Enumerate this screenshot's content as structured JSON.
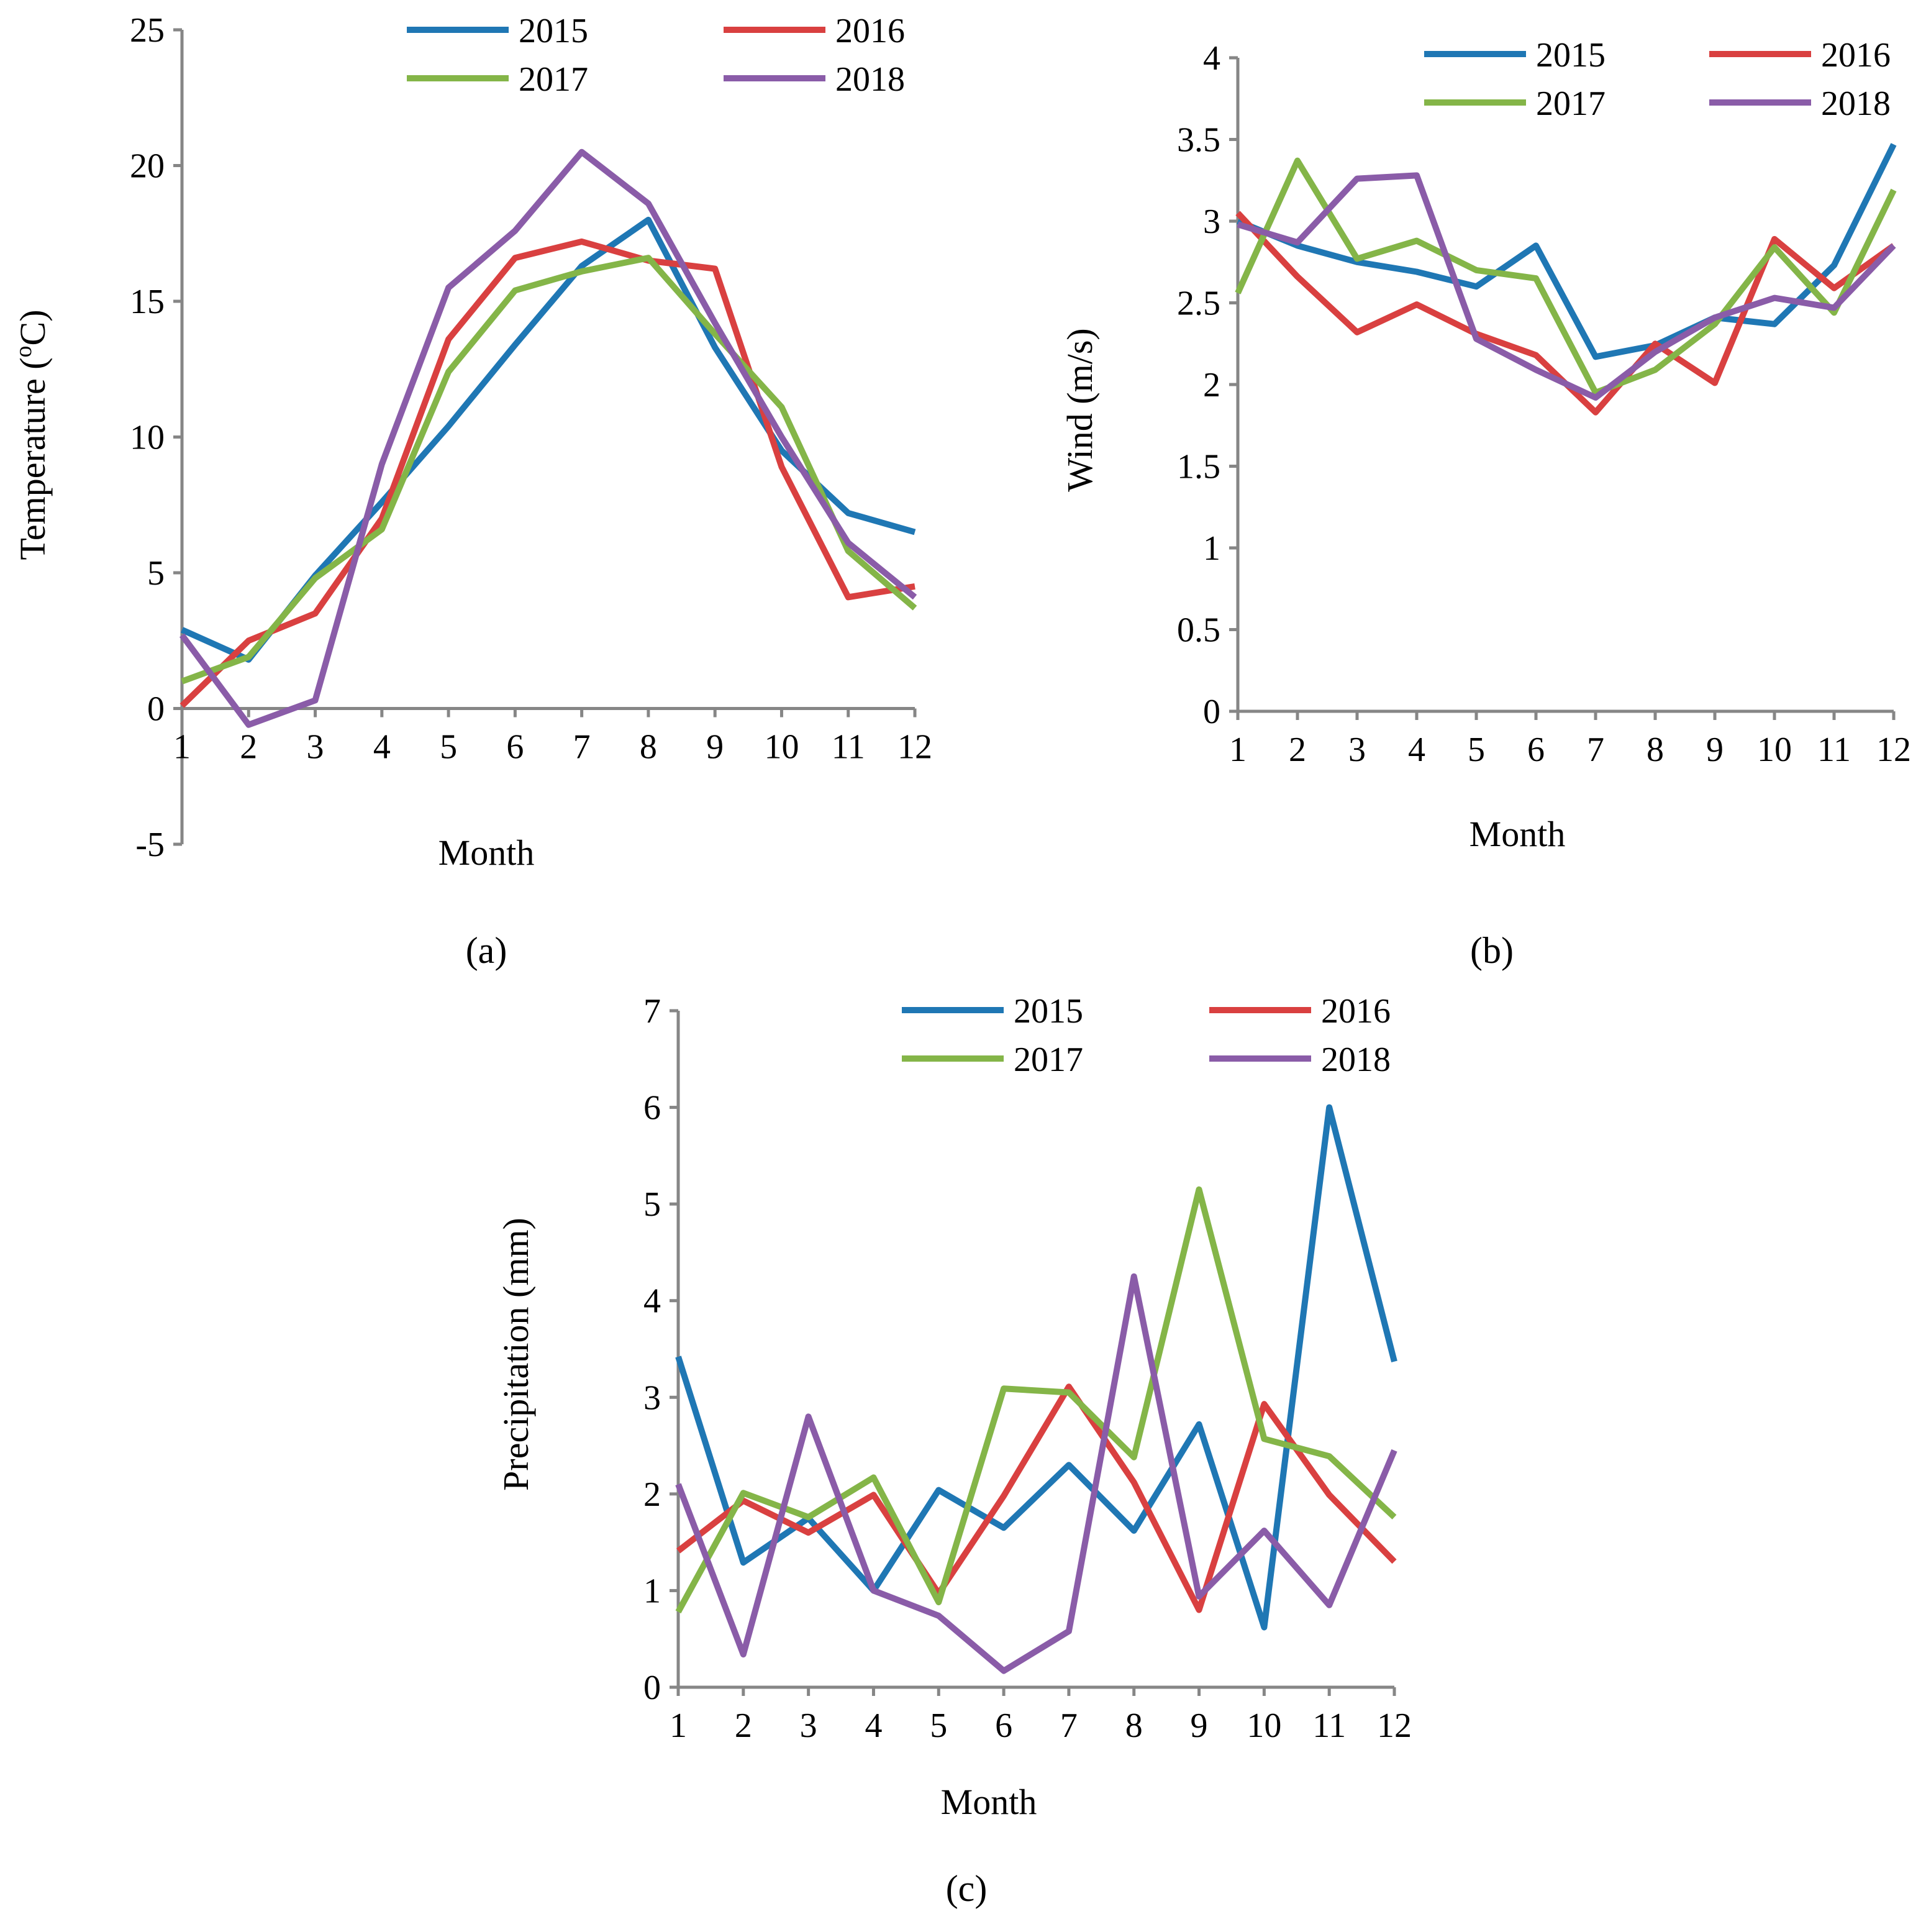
{
  "chart_data": [
    {
      "panel_label": "(a)",
      "type": "line",
      "xlabel": "Month",
      "ylabel": "Temperature (°C)",
      "ylabel_main": "Temperature (",
      "ylabel_sup": "o",
      "ylabel_tail": "C)",
      "xlim": [
        1,
        12
      ],
      "ylim": [
        -5,
        25
      ],
      "ytick_step": 5,
      "grid": false,
      "legend_position": "top-right",
      "x": [
        1,
        2,
        3,
        4,
        5,
        6,
        7,
        8,
        9,
        10,
        11,
        12
      ],
      "x_tick_labels": [
        "1",
        "2",
        "3",
        "4",
        "5",
        "6",
        "7",
        "8",
        "9",
        "10",
        "11",
        "12"
      ],
      "y_tick_labels": [
        "-5",
        "0",
        "5",
        "10",
        "15",
        "20",
        "25"
      ],
      "series": [
        {
          "name": "2015",
          "color": "#1f77b4",
          "values": [
            2.9,
            1.8,
            4.9,
            7.6,
            10.4,
            13.4,
            16.3,
            18.0,
            13.3,
            9.5,
            7.2,
            6.5
          ]
        },
        {
          "name": "2016",
          "color": "#d94040",
          "values": [
            0.1,
            2.5,
            3.5,
            7.0,
            13.6,
            16.6,
            17.2,
            16.5,
            16.2,
            8.9,
            4.1,
            4.5
          ]
        },
        {
          "name": "2017",
          "color": "#84b548",
          "values": [
            1.0,
            1.9,
            4.8,
            6.6,
            12.4,
            15.4,
            16.1,
            16.6,
            13.8,
            11.1,
            5.8,
            3.7
          ]
        },
        {
          "name": "2018",
          "color": "#8a5ca8",
          "values": [
            2.7,
            -0.6,
            0.3,
            9.0,
            15.5,
            17.6,
            20.5,
            18.6,
            14.2,
            10.0,
            6.1,
            4.1
          ]
        }
      ]
    },
    {
      "panel_label": "(b)",
      "type": "line",
      "xlabel": "Month",
      "ylabel": "Wind (m/s)",
      "xlim": [
        1,
        12
      ],
      "ylim": [
        0,
        4
      ],
      "ytick_step": 0.5,
      "grid": false,
      "legend_position": "top-right",
      "x": [
        1,
        2,
        3,
        4,
        5,
        6,
        7,
        8,
        9,
        10,
        11,
        12
      ],
      "x_tick_labels": [
        "1",
        "2",
        "3",
        "4",
        "5",
        "6",
        "7",
        "8",
        "9",
        "10",
        "11",
        "12"
      ],
      "y_tick_labels": [
        "0",
        "0.5",
        "1",
        "1.5",
        "2",
        "2.5",
        "3",
        "3.5",
        "4"
      ],
      "series": [
        {
          "name": "2015",
          "color": "#1f77b4",
          "values": [
            3.0,
            2.85,
            2.75,
            2.69,
            2.6,
            2.85,
            2.17,
            2.24,
            2.41,
            2.37,
            2.73,
            3.47
          ]
        },
        {
          "name": "2016",
          "color": "#d94040",
          "values": [
            3.05,
            2.66,
            2.32,
            2.49,
            2.31,
            2.18,
            1.83,
            2.25,
            2.01,
            2.89,
            2.59,
            2.85
          ]
        },
        {
          "name": "2017",
          "color": "#84b548",
          "values": [
            2.56,
            3.37,
            2.77,
            2.88,
            2.7,
            2.65,
            1.95,
            2.09,
            2.37,
            2.84,
            2.44,
            3.19
          ]
        },
        {
          "name": "2018",
          "color": "#8a5ca8",
          "values": [
            2.98,
            2.87,
            3.26,
            3.28,
            2.28,
            2.09,
            1.92,
            2.2,
            2.41,
            2.53,
            2.47,
            2.85
          ]
        }
      ]
    },
    {
      "panel_label": "(c)",
      "type": "line",
      "xlabel": "Month",
      "ylabel": "Precipitation (mm)",
      "xlim": [
        1,
        12
      ],
      "ylim": [
        0,
        7
      ],
      "ytick_step": 1,
      "grid": false,
      "legend_position": "top-right",
      "x": [
        1,
        2,
        3,
        4,
        5,
        6,
        7,
        8,
        9,
        10,
        11,
        12
      ],
      "x_tick_labels": [
        "1",
        "2",
        "3",
        "4",
        "5",
        "6",
        "7",
        "8",
        "9",
        "10",
        "11",
        "12"
      ],
      "y_tick_labels": [
        "0",
        "1",
        "2",
        "3",
        "4",
        "5",
        "6",
        "7"
      ],
      "series": [
        {
          "name": "2015",
          "color": "#1f77b4",
          "values": [
            3.42,
            1.29,
            1.75,
            1.0,
            2.04,
            1.65,
            2.3,
            1.62,
            2.72,
            0.62,
            6.0,
            3.37
          ]
        },
        {
          "name": "2016",
          "color": "#d94040",
          "values": [
            1.41,
            1.93,
            1.6,
            1.99,
            0.97,
            1.98,
            3.11,
            2.12,
            0.8,
            2.93,
            1.99,
            1.3
          ]
        },
        {
          "name": "2017",
          "color": "#84b548",
          "values": [
            0.78,
            2.01,
            1.76,
            2.17,
            0.88,
            3.09,
            3.05,
            2.38,
            5.15,
            2.57,
            2.39,
            1.76
          ]
        },
        {
          "name": "2018",
          "color": "#8a5ca8",
          "values": [
            2.1,
            0.34,
            2.8,
            1.0,
            0.74,
            0.17,
            0.58,
            4.25,
            0.94,
            1.62,
            0.85,
            2.45
          ]
        }
      ]
    }
  ]
}
